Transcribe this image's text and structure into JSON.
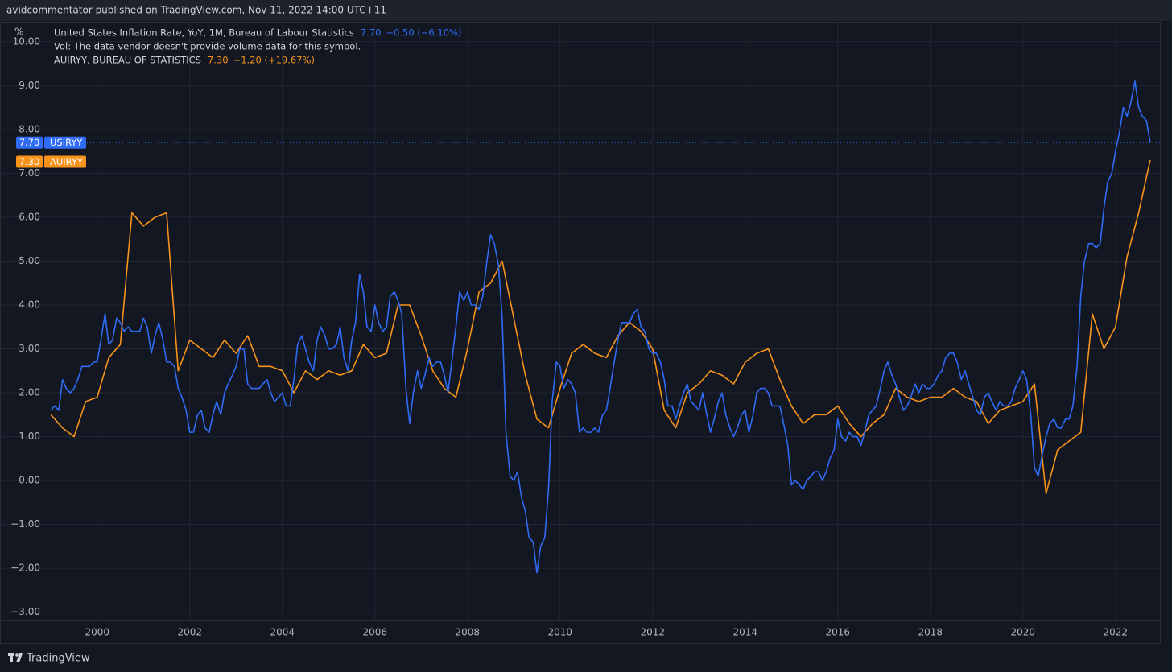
{
  "header": {
    "publisher_line": "avidcommentator published on TradingView.com, Nov 11, 2022 14:00 UTC+11"
  },
  "footer": {
    "brand": "TradingView"
  },
  "chart_data": {
    "type": "line",
    "y_unit": "%",
    "legend_note": "Vol: The data vendor doesn't provide volume data for this symbol.",
    "xlim": [
      1997.9,
      2022.96
    ],
    "xticks": [
      2000,
      2002,
      2004,
      2006,
      2008,
      2010,
      2012,
      2014,
      2016,
      2018,
      2020,
      2022
    ],
    "ylim": [
      -3.2,
      10.4
    ],
    "yticks": [
      {
        "value": -3,
        "label": "−3.00"
      },
      {
        "value": -2,
        "label": "−2.00"
      },
      {
        "value": -1,
        "label": "−1.00"
      },
      {
        "value": 0,
        "label": "0.00"
      },
      {
        "value": 1,
        "label": "1.00"
      },
      {
        "value": 2,
        "label": "2.00"
      },
      {
        "value": 3,
        "label": "3.00"
      },
      {
        "value": 4,
        "label": "4.00"
      },
      {
        "value": 5,
        "label": "5.00"
      },
      {
        "value": 6,
        "label": "6.00"
      },
      {
        "value": 7,
        "label": "7.00"
      },
      {
        "value": 8,
        "label": "8.00"
      },
      {
        "value": 9,
        "label": "9.00"
      },
      {
        "value": 10,
        "label": "10.00"
      }
    ],
    "grid": true,
    "series": [
      {
        "name": "United States Inflation Rate, YoY, 1M, Bureau of Labour Statistics",
        "symbol": "USIRYY",
        "color": "#2f6bf5",
        "last_value_label": "7.70",
        "change_label": "−0.50 (−6.10%)",
        "x": [
          1999.0,
          1999.08,
          1999.17,
          1999.25,
          1999.33,
          1999.42,
          1999.5,
          1999.58,
          1999.67,
          1999.75,
          1999.83,
          1999.92,
          2000.0,
          2000.08,
          2000.17,
          2000.25,
          2000.33,
          2000.42,
          2000.5,
          2000.58,
          2000.67,
          2000.75,
          2000.83,
          2000.92,
          2001.0,
          2001.08,
          2001.17,
          2001.25,
          2001.33,
          2001.42,
          2001.5,
          2001.58,
          2001.67,
          2001.75,
          2001.83,
          2001.92,
          2002.0,
          2002.08,
          2002.17,
          2002.25,
          2002.33,
          2002.42,
          2002.5,
          2002.58,
          2002.67,
          2002.75,
          2002.83,
          2002.92,
          2003.0,
          2003.08,
          2003.17,
          2003.25,
          2003.33,
          2003.42,
          2003.5,
          2003.58,
          2003.67,
          2003.75,
          2003.83,
          2003.92,
          2004.0,
          2004.08,
          2004.17,
          2004.25,
          2004.33,
          2004.42,
          2004.5,
          2004.58,
          2004.67,
          2004.75,
          2004.83,
          2004.92,
          2005.0,
          2005.08,
          2005.17,
          2005.25,
          2005.33,
          2005.42,
          2005.5,
          2005.58,
          2005.67,
          2005.75,
          2005.83,
          2005.92,
          2006.0,
          2006.08,
          2006.17,
          2006.25,
          2006.33,
          2006.42,
          2006.5,
          2006.58,
          2006.67,
          2006.75,
          2006.83,
          2006.92,
          2007.0,
          2007.08,
          2007.17,
          2007.25,
          2007.33,
          2007.42,
          2007.5,
          2007.58,
          2007.67,
          2007.75,
          2007.83,
          2007.92,
          2008.0,
          2008.08,
          2008.17,
          2008.25,
          2008.33,
          2008.42,
          2008.5,
          2008.58,
          2008.67,
          2008.75,
          2008.83,
          2008.92,
          2009.0,
          2009.08,
          2009.17,
          2009.25,
          2009.33,
          2009.42,
          2009.5,
          2009.58,
          2009.67,
          2009.75,
          2009.83,
          2009.92,
          2010.0,
          2010.08,
          2010.17,
          2010.25,
          2010.33,
          2010.42,
          2010.5,
          2010.58,
          2010.67,
          2010.75,
          2010.83,
          2010.92,
          2011.0,
          2011.08,
          2011.17,
          2011.25,
          2011.33,
          2011.42,
          2011.5,
          2011.58,
          2011.67,
          2011.75,
          2011.83,
          2011.92,
          2012.0,
          2012.08,
          2012.17,
          2012.25,
          2012.33,
          2012.42,
          2012.5,
          2012.58,
          2012.67,
          2012.75,
          2012.83,
          2012.92,
          2013.0,
          2013.08,
          2013.17,
          2013.25,
          2013.33,
          2013.42,
          2013.5,
          2013.58,
          2013.67,
          2013.75,
          2013.83,
          2013.92,
          2014.0,
          2014.08,
          2014.17,
          2014.25,
          2014.33,
          2014.42,
          2014.5,
          2014.58,
          2014.67,
          2014.75,
          2014.83,
          2014.92,
          2015.0,
          2015.08,
          2015.17,
          2015.25,
          2015.33,
          2015.42,
          2015.5,
          2015.58,
          2015.67,
          2015.75,
          2015.83,
          2015.92,
          2016.0,
          2016.08,
          2016.17,
          2016.25,
          2016.33,
          2016.42,
          2016.5,
          2016.58,
          2016.67,
          2016.75,
          2016.83,
          2016.92,
          2017.0,
          2017.08,
          2017.17,
          2017.25,
          2017.33,
          2017.42,
          2017.5,
          2017.58,
          2017.67,
          2017.75,
          2017.83,
          2017.92,
          2018.0,
          2018.08,
          2018.17,
          2018.25,
          2018.33,
          2018.42,
          2018.5,
          2018.58,
          2018.67,
          2018.75,
          2018.83,
          2018.92,
          2019.0,
          2019.08,
          2019.17,
          2019.25,
          2019.33,
          2019.42,
          2019.5,
          2019.58,
          2019.67,
          2019.75,
          2019.83,
          2019.92,
          2020.0,
          2020.08,
          2020.17,
          2020.25,
          2020.33,
          2020.42,
          2020.5,
          2020.58,
          2020.67,
          2020.75,
          2020.83,
          2020.92,
          2021.0,
          2021.08,
          2021.17,
          2021.25,
          2021.33,
          2021.42,
          2021.5,
          2021.58,
          2021.67,
          2021.75,
          2021.83,
          2021.92,
          2022.0,
          2022.08,
          2022.17,
          2022.25,
          2022.33,
          2022.42,
          2022.5,
          2022.58,
          2022.67,
          2022.75
        ],
        "values": [
          1.6,
          1.7,
          1.6,
          2.3,
          2.1,
          2.0,
          2.1,
          2.3,
          2.6,
          2.6,
          2.6,
          2.7,
          2.7,
          3.2,
          3.8,
          3.1,
          3.2,
          3.7,
          3.6,
          3.4,
          3.5,
          3.4,
          3.4,
          3.4,
          3.7,
          3.5,
          2.9,
          3.3,
          3.6,
          3.2,
          2.7,
          2.7,
          2.6,
          2.1,
          1.9,
          1.6,
          1.1,
          1.1,
          1.5,
          1.6,
          1.2,
          1.1,
          1.5,
          1.8,
          1.5,
          2.0,
          2.2,
          2.4,
          2.6,
          3.0,
          3.0,
          2.2,
          2.1,
          2.1,
          2.1,
          2.2,
          2.3,
          2.0,
          1.8,
          1.9,
          2.0,
          1.7,
          1.7,
          2.3,
          3.1,
          3.3,
          3.0,
          2.7,
          2.5,
          3.2,
          3.5,
          3.3,
          3.0,
          3.0,
          3.1,
          3.5,
          2.8,
          2.5,
          3.2,
          3.6,
          4.7,
          4.3,
          3.5,
          3.4,
          4.0,
          3.6,
          3.4,
          3.5,
          4.2,
          4.3,
          4.1,
          3.8,
          2.1,
          1.3,
          2.0,
          2.5,
          2.1,
          2.4,
          2.8,
          2.6,
          2.7,
          2.7,
          2.4,
          2.0,
          2.8,
          3.5,
          4.3,
          4.1,
          4.3,
          4.0,
          4.0,
          3.9,
          4.2,
          5.0,
          5.6,
          5.4,
          4.9,
          3.7,
          1.1,
          0.1,
          0.0,
          0.2,
          -0.4,
          -0.7,
          -1.3,
          -1.4,
          -2.1,
          -1.5,
          -1.3,
          -0.2,
          1.8,
          2.7,
          2.6,
          2.1,
          2.3,
          2.2,
          2.0,
          1.1,
          1.2,
          1.1,
          1.1,
          1.2,
          1.1,
          1.5,
          1.6,
          2.1,
          2.7,
          3.2,
          3.6,
          3.6,
          3.6,
          3.8,
          3.9,
          3.5,
          3.4,
          3.0,
          2.9,
          2.9,
          2.7,
          2.3,
          1.7,
          1.7,
          1.4,
          1.7,
          2.0,
          2.2,
          1.8,
          1.7,
          1.6,
          2.0,
          1.5,
          1.1,
          1.4,
          1.8,
          2.0,
          1.5,
          1.2,
          1.0,
          1.2,
          1.5,
          1.6,
          1.1,
          1.5,
          2.0,
          2.1,
          2.1,
          2.0,
          1.7,
          1.7,
          1.7,
          1.3,
          0.8,
          -0.1,
          0.0,
          -0.1,
          -0.2,
          0.0,
          0.1,
          0.2,
          0.2,
          0.0,
          0.2,
          0.5,
          0.7,
          1.4,
          1.0,
          0.9,
          1.1,
          1.0,
          1.0,
          0.8,
          1.1,
          1.5,
          1.6,
          1.7,
          2.1,
          2.5,
          2.7,
          2.4,
          2.2,
          1.9,
          1.6,
          1.7,
          1.9,
          2.2,
          2.0,
          2.2,
          2.1,
          2.1,
          2.2,
          2.4,
          2.5,
          2.8,
          2.9,
          2.9,
          2.7,
          2.3,
          2.5,
          2.2,
          1.9,
          1.6,
          1.5,
          1.9,
          2.0,
          1.8,
          1.6,
          1.8,
          1.7,
          1.7,
          1.8,
          2.1,
          2.3,
          2.5,
          2.3,
          1.5,
          0.3,
          0.1,
          0.6,
          1.0,
          1.3,
          1.4,
          1.2,
          1.2,
          1.4,
          1.4,
          1.7,
          2.6,
          4.2,
          5.0,
          5.4,
          5.4,
          5.3,
          5.4,
          6.2,
          6.8,
          7.0,
          7.5,
          7.9,
          8.5,
          8.3,
          8.6,
          9.1,
          8.5,
          8.3,
          8.2,
          7.7
        ]
      },
      {
        "name": "AUIRYY, BUREAU OF STATISTICS",
        "symbol": "AUIRYY",
        "color": "#f7931a",
        "last_value_label": "7.30",
        "change_label": "+1.20 (+19.67%)",
        "x": [
          1999.0,
          1999.25,
          1999.5,
          1999.75,
          2000.0,
          2000.25,
          2000.5,
          2000.75,
          2001.0,
          2001.25,
          2001.5,
          2001.75,
          2002.0,
          2002.25,
          2002.5,
          2002.75,
          2003.0,
          2003.25,
          2003.5,
          2003.75,
          2004.0,
          2004.25,
          2004.5,
          2004.75,
          2005.0,
          2005.25,
          2005.5,
          2005.75,
          2006.0,
          2006.25,
          2006.5,
          2006.75,
          2007.0,
          2007.25,
          2007.5,
          2007.75,
          2008.0,
          2008.25,
          2008.5,
          2008.75,
          2009.0,
          2009.25,
          2009.5,
          2009.75,
          2010.0,
          2010.25,
          2010.5,
          2010.75,
          2011.0,
          2011.25,
          2011.5,
          2011.75,
          2012.0,
          2012.25,
          2012.5,
          2012.75,
          2013.0,
          2013.25,
          2013.5,
          2013.75,
          2014.0,
          2014.25,
          2014.5,
          2014.75,
          2015.0,
          2015.25,
          2015.5,
          2015.75,
          2016.0,
          2016.25,
          2016.5,
          2016.75,
          2017.0,
          2017.25,
          2017.5,
          2017.75,
          2018.0,
          2018.25,
          2018.5,
          2018.75,
          2019.0,
          2019.25,
          2019.5,
          2019.75,
          2020.0,
          2020.25,
          2020.5,
          2020.75,
          2021.0,
          2021.25,
          2021.5,
          2021.75,
          2022.0,
          2022.25,
          2022.5,
          2022.75
        ],
        "values": [
          1.5,
          1.2,
          1.0,
          1.8,
          1.9,
          2.8,
          3.1,
          6.1,
          5.8,
          6.0,
          6.1,
          2.5,
          3.2,
          3.0,
          2.8,
          3.2,
          2.9,
          3.3,
          2.6,
          2.6,
          2.5,
          2.0,
          2.5,
          2.3,
          2.5,
          2.4,
          2.5,
          3.1,
          2.8,
          2.9,
          4.0,
          4.0,
          3.3,
          2.5,
          2.1,
          1.9,
          3.0,
          4.3,
          4.5,
          5.0,
          3.7,
          2.4,
          1.4,
          1.2,
          2.1,
          2.9,
          3.1,
          2.9,
          2.8,
          3.3,
          3.6,
          3.4,
          3.0,
          1.6,
          1.2,
          2.0,
          2.2,
          2.5,
          2.4,
          2.2,
          2.7,
          2.9,
          3.0,
          2.3,
          1.7,
          1.3,
          1.5,
          1.5,
          1.7,
          1.3,
          1.0,
          1.3,
          1.5,
          2.1,
          1.9,
          1.8,
          1.9,
          1.9,
          2.1,
          1.9,
          1.8,
          1.3,
          1.6,
          1.7,
          1.8,
          2.2,
          -0.3,
          0.7,
          0.9,
          1.1,
          3.8,
          3.0,
          3.5,
          5.1,
          6.1,
          7.3
        ]
      }
    ]
  }
}
